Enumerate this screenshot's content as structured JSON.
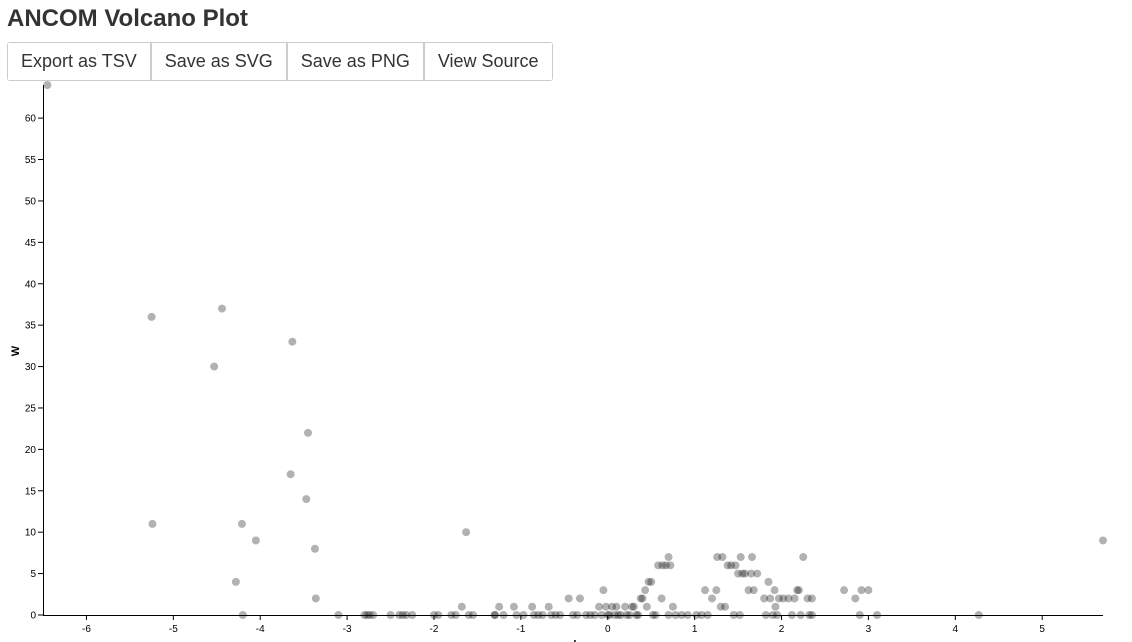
{
  "page": {
    "title": "ANCOM Volcano Plot"
  },
  "toolbar": {
    "buttons": [
      {
        "id": "export-tsv",
        "label": "Export as TSV"
      },
      {
        "id": "save-svg",
        "label": "Save as SVG"
      },
      {
        "id": "save-png",
        "label": "Save as PNG"
      },
      {
        "id": "view-source",
        "label": "View Source"
      }
    ]
  },
  "chart_data": {
    "type": "scatter",
    "title": "",
    "xlabel": "clr",
    "ylabel": "W",
    "xlim": [
      -6.5,
      5.7
    ],
    "ylim": [
      0,
      64
    ],
    "x_ticks": [
      -6,
      -5,
      -4,
      -3,
      -2,
      -1,
      0,
      1,
      2,
      3,
      4,
      5
    ],
    "y_ticks": [
      0,
      5,
      10,
      15,
      20,
      25,
      30,
      35,
      40,
      45,
      50,
      55,
      60
    ],
    "grid": false,
    "point_color": "#000000",
    "point_opacity": 0.3,
    "points": [
      [
        -6.45,
        64
      ],
      [
        -5.25,
        36
      ],
      [
        -5.24,
        11
      ],
      [
        -4.44,
        37
      ],
      [
        -4.53,
        30
      ],
      [
        -4.28,
        4
      ],
      [
        -4.21,
        11
      ],
      [
        -4.2,
        0
      ],
      [
        -4.05,
        9
      ],
      [
        -3.63,
        33
      ],
      [
        -3.65,
        17
      ],
      [
        -3.45,
        22
      ],
      [
        -3.47,
        14
      ],
      [
        -3.37,
        8
      ],
      [
        -3.36,
        2
      ],
      [
        -3.1,
        0
      ],
      [
        -2.8,
        0
      ],
      [
        -2.77,
        0
      ],
      [
        -2.74,
        0
      ],
      [
        -2.7,
        0
      ],
      [
        -2.5,
        0
      ],
      [
        -2.4,
        0
      ],
      [
        -2.36,
        0
      ],
      [
        -2.32,
        0
      ],
      [
        -2.25,
        0
      ],
      [
        -2.0,
        0
      ],
      [
        -1.95,
        0
      ],
      [
        -1.8,
        0
      ],
      [
        -1.75,
        0
      ],
      [
        -1.68,
        1
      ],
      [
        -1.63,
        10
      ],
      [
        -1.6,
        0
      ],
      [
        -1.55,
        0
      ],
      [
        -1.3,
        0
      ],
      [
        -1.3,
        0
      ],
      [
        -1.25,
        1
      ],
      [
        -1.2,
        0
      ],
      [
        -1.08,
        1
      ],
      [
        -1.05,
        0
      ],
      [
        -0.97,
        0
      ],
      [
        -0.87,
        1
      ],
      [
        -0.85,
        0
      ],
      [
        -0.8,
        0
      ],
      [
        -0.75,
        0
      ],
      [
        -0.68,
        1
      ],
      [
        -0.65,
        0
      ],
      [
        -0.6,
        0
      ],
      [
        -0.55,
        0
      ],
      [
        -0.45,
        2
      ],
      [
        -0.4,
        0
      ],
      [
        -0.35,
        0
      ],
      [
        -0.32,
        2
      ],
      [
        -0.25,
        0
      ],
      [
        -0.2,
        0
      ],
      [
        -0.15,
        0
      ],
      [
        -0.1,
        1
      ],
      [
        -0.07,
        0
      ],
      [
        -0.05,
        3
      ],
      [
        -0.02,
        1
      ],
      [
        0.0,
        0
      ],
      [
        0.02,
        0
      ],
      [
        0.05,
        1
      ],
      [
        0.08,
        0
      ],
      [
        0.1,
        1
      ],
      [
        0.12,
        0
      ],
      [
        0.15,
        0
      ],
      [
        0.2,
        1
      ],
      [
        0.22,
        0
      ],
      [
        0.25,
        0
      ],
      [
        0.28,
        1
      ],
      [
        0.3,
        1
      ],
      [
        0.33,
        0
      ],
      [
        0.35,
        0
      ],
      [
        0.38,
        2
      ],
      [
        0.4,
        2
      ],
      [
        0.43,
        3
      ],
      [
        0.45,
        1
      ],
      [
        0.47,
        4
      ],
      [
        0.5,
        4
      ],
      [
        0.52,
        0
      ],
      [
        0.55,
        0
      ],
      [
        0.58,
        6
      ],
      [
        0.62,
        2
      ],
      [
        0.63,
        6
      ],
      [
        0.67,
        6
      ],
      [
        0.7,
        0
      ],
      [
        0.7,
        7
      ],
      [
        0.72,
        6
      ],
      [
        0.75,
        1
      ],
      [
        0.78,
        0
      ],
      [
        0.85,
        0
      ],
      [
        0.92,
        0
      ],
      [
        1.02,
        0
      ],
      [
        1.08,
        0
      ],
      [
        1.12,
        3
      ],
      [
        1.15,
        0
      ],
      [
        1.2,
        2
      ],
      [
        1.25,
        3
      ],
      [
        1.26,
        7
      ],
      [
        1.3,
        1
      ],
      [
        1.32,
        7
      ],
      [
        1.35,
        1
      ],
      [
        1.38,
        6
      ],
      [
        1.42,
        6
      ],
      [
        1.45,
        0
      ],
      [
        1.47,
        6
      ],
      [
        1.5,
        5
      ],
      [
        1.52,
        0
      ],
      [
        1.53,
        7
      ],
      [
        1.55,
        5
      ],
      [
        1.58,
        5
      ],
      [
        1.62,
        3
      ],
      [
        1.65,
        5
      ],
      [
        1.66,
        7
      ],
      [
        1.68,
        3
      ],
      [
        1.72,
        5
      ],
      [
        1.8,
        2
      ],
      [
        1.82,
        0
      ],
      [
        1.85,
        4
      ],
      [
        1.87,
        2
      ],
      [
        1.9,
        0
      ],
      [
        1.92,
        3
      ],
      [
        1.93,
        1
      ],
      [
        1.95,
        0
      ],
      [
        1.97,
        2
      ],
      [
        2.02,
        2
      ],
      [
        2.08,
        2
      ],
      [
        2.12,
        0
      ],
      [
        2.15,
        2
      ],
      [
        2.18,
        3
      ],
      [
        2.2,
        3
      ],
      [
        2.22,
        0
      ],
      [
        2.25,
        7
      ],
      [
        2.3,
        2
      ],
      [
        2.32,
        0
      ],
      [
        2.35,
        2
      ],
      [
        2.35,
        0
      ],
      [
        2.72,
        3
      ],
      [
        2.85,
        2
      ],
      [
        2.9,
        0
      ],
      [
        2.92,
        3
      ],
      [
        3.0,
        3
      ],
      [
        3.1,
        0
      ],
      [
        4.27,
        0
      ],
      [
        5.7,
        9
      ]
    ]
  }
}
